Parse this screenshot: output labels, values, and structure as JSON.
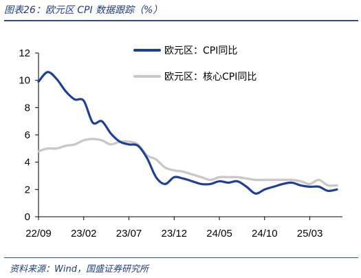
{
  "header": {
    "title": "图表26：欧元区 CPI 数据跟踪（%）"
  },
  "footer": {
    "source": "资料来源：Wind，国盛证券研究所"
  },
  "chart_data": {
    "type": "line",
    "title": "图表26：欧元区 CPI 数据跟踪（%）",
    "xlabel": "",
    "ylabel": "",
    "ylim": [
      0,
      12
    ],
    "yticks": [
      0,
      2,
      4,
      6,
      8,
      10,
      12
    ],
    "x_tick_labels": [
      "22/09",
      "23/02",
      "23/07",
      "23/12",
      "24/05",
      "24/10",
      "25/03"
    ],
    "x_tick_dates": [
      "2022-09",
      "2023-02",
      "2023-07",
      "2023-12",
      "2024-05",
      "2024-10",
      "2025-03"
    ],
    "grid": false,
    "legend_position": "top-right",
    "x": [
      "2022-09",
      "2022-10",
      "2022-11",
      "2022-12",
      "2023-01",
      "2023-02",
      "2023-03",
      "2023-04",
      "2023-05",
      "2023-06",
      "2023-07",
      "2023-08",
      "2023-09",
      "2023-10",
      "2023-11",
      "2023-12",
      "2024-01",
      "2024-02",
      "2024-03",
      "2024-04",
      "2024-05",
      "2024-06",
      "2024-07",
      "2024-08",
      "2024-09",
      "2024-10",
      "2024-11",
      "2024-12",
      "2025-01",
      "2025-02",
      "2025-03",
      "2025-04",
      "2025-05",
      "2025-06"
    ],
    "series": [
      {
        "name": "欧元区：CPI同比",
        "color": "#1f3f95",
        "values": [
          9.9,
          10.6,
          10.1,
          9.2,
          8.6,
          8.5,
          6.9,
          7.0,
          6.1,
          5.5,
          5.3,
          5.2,
          4.3,
          2.9,
          2.4,
          2.9,
          2.8,
          2.6,
          2.4,
          2.4,
          2.6,
          2.5,
          2.6,
          2.2,
          1.7,
          2.0,
          2.2,
          2.4,
          2.5,
          2.3,
          2.2,
          2.2,
          1.9,
          2.0
        ]
      },
      {
        "name": "欧元区：核心CPI同比",
        "color": "#c8c8c8",
        "values": [
          4.8,
          5.0,
          5.0,
          5.2,
          5.3,
          5.6,
          5.7,
          5.6,
          5.3,
          5.5,
          5.5,
          5.3,
          4.5,
          4.2,
          3.6,
          3.4,
          3.3,
          3.1,
          2.9,
          2.7,
          2.9,
          2.9,
          2.9,
          2.8,
          2.7,
          2.7,
          2.7,
          2.7,
          2.7,
          2.6,
          2.4,
          2.7,
          2.3,
          2.3
        ]
      }
    ]
  }
}
